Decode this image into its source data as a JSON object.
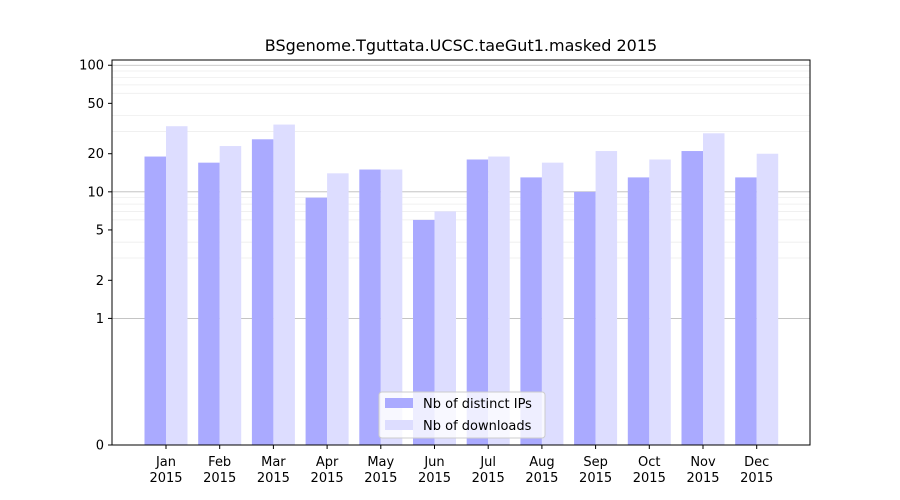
{
  "chart_data": {
    "type": "bar",
    "title": "BSgenome.Tguttata.UCSC.taeGut1.masked 2015",
    "xlabel": "",
    "ylabel": "",
    "y_scale": "symlog",
    "ylim": [
      0,
      110
    ],
    "yticks": [
      0,
      1,
      2,
      5,
      10,
      20,
      50,
      100
    ],
    "categories": [
      [
        "Jan",
        "2015"
      ],
      [
        "Feb",
        "2015"
      ],
      [
        "Mar",
        "2015"
      ],
      [
        "Apr",
        "2015"
      ],
      [
        "May",
        "2015"
      ],
      [
        "Jun",
        "2015"
      ],
      [
        "Jul",
        "2015"
      ],
      [
        "Aug",
        "2015"
      ],
      [
        "Sep",
        "2015"
      ],
      [
        "Oct",
        "2015"
      ],
      [
        "Nov",
        "2015"
      ],
      [
        "Dec",
        "2015"
      ]
    ],
    "series": [
      {
        "name": "Nb of distinct IPs",
        "color": "#aaaaff",
        "values": [
          19,
          17,
          26,
          9,
          15,
          6,
          18,
          13,
          10,
          13,
          21,
          13
        ]
      },
      {
        "name": "Nb of downloads",
        "color": "#ddddff",
        "values": [
          33,
          23,
          34,
          14,
          15,
          7,
          19,
          17,
          21,
          18,
          29,
          20
        ]
      }
    ],
    "legend_position": "bottom-center",
    "grid": true
  }
}
